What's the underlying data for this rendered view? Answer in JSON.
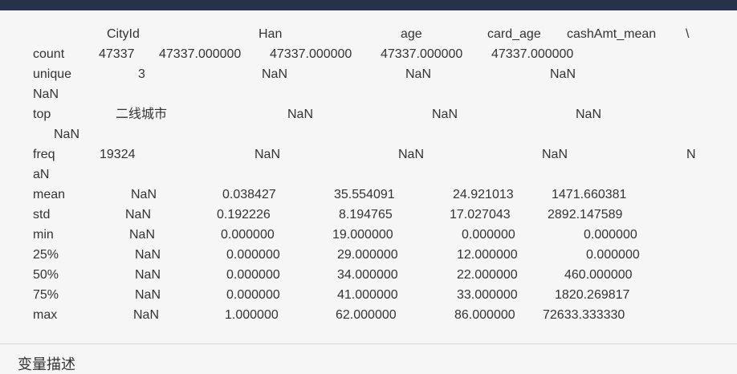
{
  "table": {
    "header": {
      "cityid": "CityId",
      "han": "Han",
      "age": "age",
      "card_age": "card_age",
      "cashamt_mean": "cashAmt_mean",
      "continuation": "\\"
    },
    "rows": [
      {
        "label": "count",
        "c1": "47337",
        "c2": "47337.000000",
        "c3": "47337.000000",
        "c4": "47337.000000",
        "c5": "47337.000000"
      },
      {
        "label": "unique",
        "c1": "3",
        "c2": "NaN",
        "c3": "NaN",
        "c4": "NaN",
        "wrap": "NaN"
      },
      {
        "label": "top",
        "c1": "二线城市",
        "c2": "NaN",
        "c3": "NaN",
        "c4": "NaN",
        "wrap": "NaN"
      },
      {
        "label": "freq",
        "c1": "19324",
        "c2": "NaN",
        "c3": "NaN",
        "c4": "NaN",
        "tail": "N",
        "wrap": "aN"
      },
      {
        "label": "mean",
        "c1": "NaN",
        "c2": "0.038427",
        "c3": "35.554091",
        "c4": "24.921013",
        "c5": "1471.660381"
      },
      {
        "label": "std",
        "c1": "NaN",
        "c2": "0.192226",
        "c3": "8.194765",
        "c4": "17.027043",
        "c5": "2892.147589"
      },
      {
        "label": "min",
        "c1": "NaN",
        "c2": "0.000000",
        "c3": "19.000000",
        "c4": "0.000000",
        "c5": "0.000000"
      },
      {
        "label": "25%",
        "c1": "NaN",
        "c2": "0.000000",
        "c3": "29.000000",
        "c4": "12.000000",
        "c5": "0.000000"
      },
      {
        "label": "50%",
        "c1": "NaN",
        "c2": "0.000000",
        "c3": "34.000000",
        "c4": "22.000000",
        "c5": "460.000000"
      },
      {
        "label": "75%",
        "c1": "NaN",
        "c2": "0.000000",
        "c3": "41.000000",
        "c4": "33.000000",
        "c5": "1820.269817"
      },
      {
        "label": "max",
        "c1": "NaN",
        "c2": "1.000000",
        "c3": "62.000000",
        "c4": "86.000000",
        "c5": "72633.333330"
      }
    ]
  },
  "section": {
    "title": "变量描述"
  }
}
